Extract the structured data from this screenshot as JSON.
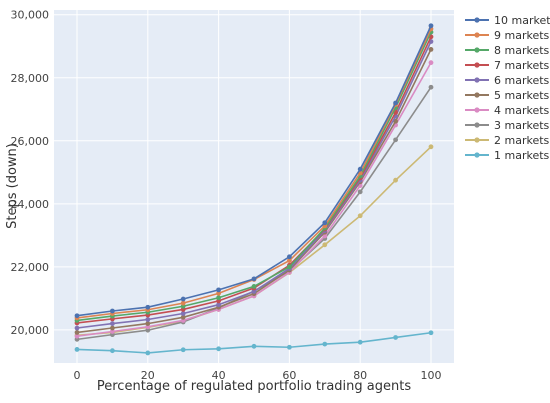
{
  "chart_data": {
    "type": "line",
    "title": "",
    "xlabel": "Percentage of regulated portfolio trading agents",
    "ylabel": "Steps (down)",
    "x": [
      0,
      10,
      20,
      30,
      40,
      50,
      60,
      70,
      80,
      90,
      100
    ],
    "xlim": [
      -6.5,
      106.5
    ],
    "ylim": [
      18950,
      30150
    ],
    "xticks": [
      0,
      20,
      40,
      60,
      80,
      100
    ],
    "xtick_labels": [
      "0",
      "20",
      "40",
      "60",
      "80",
      "100"
    ],
    "yticks": [
      20000,
      22000,
      24000,
      26000,
      28000,
      30000
    ],
    "ytick_labels": [
      "20,000",
      "22,000",
      "24,000",
      "26,000",
      "28,000",
      "30,000"
    ],
    "grid": true,
    "legend_position": "right",
    "plot_background": "#e5ecf6",
    "series": [
      {
        "name": "10 markets",
        "color": "#4c72b0",
        "values": [
          20450,
          20600,
          20720,
          20980,
          21270,
          21620,
          22320,
          23400,
          25100,
          27200,
          29650
        ]
      },
      {
        "name": "9 markets",
        "color": "#dd8452",
        "values": [
          20380,
          20520,
          20640,
          20850,
          21160,
          21600,
          22200,
          23300,
          24980,
          27150,
          29550
        ]
      },
      {
        "name": "8 markets",
        "color": "#55a868",
        "values": [
          20300,
          20440,
          20560,
          20750,
          21020,
          21380,
          22000,
          23230,
          24880,
          27050,
          29450
        ]
      },
      {
        "name": "7 markets",
        "color": "#c44e52",
        "values": [
          20220,
          20350,
          20470,
          20650,
          20920,
          21330,
          22050,
          23200,
          24820,
          26900,
          29300
        ]
      },
      {
        "name": "6 markets",
        "color": "#8172b3",
        "values": [
          20060,
          20200,
          20330,
          20520,
          20800,
          21220,
          21950,
          23150,
          24750,
          26780,
          29150
        ]
      },
      {
        "name": "5 markets",
        "color": "#937860",
        "values": [
          19920,
          20060,
          20200,
          20400,
          20720,
          21150,
          21900,
          23100,
          24700,
          26620,
          28900
        ]
      },
      {
        "name": "4 markets",
        "color": "#da8bc3",
        "values": [
          19800,
          19950,
          20100,
          20300,
          20650,
          21080,
          21830,
          22980,
          24580,
          26500,
          28480
        ]
      },
      {
        "name": "3 markets",
        "color": "#8c8c8c",
        "values": [
          19700,
          19850,
          19990,
          20250,
          20700,
          21230,
          21870,
          22900,
          24380,
          26030,
          27700
        ]
      },
      {
        "name": "2 markets",
        "color": "#ccb974",
        "values": [
          19830,
          19920,
          20080,
          20280,
          20650,
          21080,
          21820,
          22700,
          23620,
          24750,
          25810
        ]
      },
      {
        "name": "1 markets",
        "color": "#64b5cd",
        "values": [
          19380,
          19340,
          19270,
          19370,
          19400,
          19480,
          19450,
          19550,
          19610,
          19760,
          19910
        ]
      }
    ]
  }
}
